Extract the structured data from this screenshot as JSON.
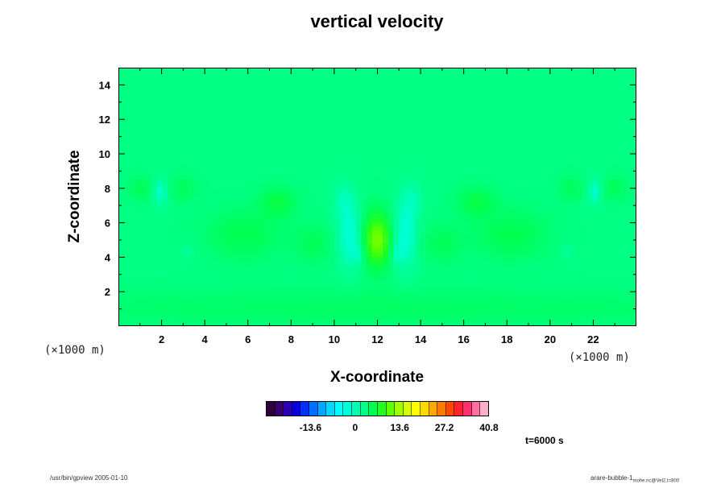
{
  "chart_data": {
    "type": "heatmap",
    "title": "vertical velocity",
    "xlabel": "X-coordinate",
    "ylabel": "Z-coordinate",
    "x_unit": "(×1000 m)",
    "y_unit": "(×1000 m)",
    "xlim": [
      0,
      24
    ],
    "ylim": [
      0,
      15
    ],
    "x_ticks": [
      2,
      4,
      6,
      8,
      10,
      12,
      14,
      16,
      18,
      20,
      22
    ],
    "y_ticks": [
      2,
      4,
      6,
      8,
      10,
      12,
      14
    ],
    "background_value": 3,
    "features": [
      {
        "x": 12.0,
        "z": 5.0,
        "sx": 0.45,
        "sz": 1.1,
        "value": 9
      },
      {
        "x": 10.7,
        "z": 5.3,
        "sx": 0.35,
        "sz": 1.3,
        "value": -6
      },
      {
        "x": 13.3,
        "z": 5.3,
        "sx": 0.35,
        "sz": 1.3,
        "value": -6
      },
      {
        "x": 10.4,
        "z": 7.3,
        "sx": 0.3,
        "sz": 0.7,
        "value": -3
      },
      {
        "x": 13.6,
        "z": 7.3,
        "sx": 0.3,
        "sz": 0.7,
        "value": -3
      },
      {
        "x": 11.1,
        "z": 4.2,
        "sx": 0.2,
        "sz": 0.4,
        "value": -3
      },
      {
        "x": 12.9,
        "z": 4.2,
        "sx": 0.2,
        "sz": 0.4,
        "value": -3
      },
      {
        "x": 1.9,
        "z": 7.8,
        "sx": 0.2,
        "sz": 0.5,
        "value": -5
      },
      {
        "x": 22.1,
        "z": 7.8,
        "sx": 0.2,
        "sz": 0.5,
        "value": -5
      },
      {
        "x": 7.4,
        "z": 7.2,
        "sx": 0.6,
        "sz": 0.6,
        "value": 3
      },
      {
        "x": 16.6,
        "z": 7.2,
        "sx": 0.6,
        "sz": 0.6,
        "value": 3
      },
      {
        "x": 5.8,
        "z": 5.3,
        "sx": 1.2,
        "sz": 1.0,
        "value": 2.5
      },
      {
        "x": 18.2,
        "z": 5.3,
        "sx": 1.2,
        "sz": 1.0,
        "value": 2.5
      },
      {
        "x": 9.0,
        "z": 4.8,
        "sx": 0.6,
        "sz": 0.8,
        "value": 2
      },
      {
        "x": 15.0,
        "z": 4.8,
        "sx": 0.6,
        "sz": 0.8,
        "value": 2
      },
      {
        "x": 3.2,
        "z": 4.3,
        "sx": 0.15,
        "sz": 0.25,
        "value": -2
      },
      {
        "x": 20.8,
        "z": 4.3,
        "sx": 0.15,
        "sz": 0.25,
        "value": -2
      },
      {
        "x": 1.0,
        "z": 8.0,
        "sx": 0.4,
        "sz": 0.5,
        "value": 2
      },
      {
        "x": 23.0,
        "z": 8.0,
        "sx": 0.4,
        "sz": 0.5,
        "value": 2
      },
      {
        "x": 3.0,
        "z": 8.0,
        "sx": 0.4,
        "sz": 0.5,
        "value": 2
      },
      {
        "x": 21.0,
        "z": 8.0,
        "sx": 0.4,
        "sz": 0.5,
        "value": 2
      },
      {
        "x": 12.0,
        "z": 1.0,
        "sx": 12.0,
        "sz": 0.8,
        "value": 1.5
      }
    ],
    "colorbar": {
      "min": -27.2,
      "max": 40.8,
      "labels": [
        "-13.6",
        "0",
        "13.6",
        "27.2",
        "40.8"
      ],
      "label_values": [
        -13.6,
        0,
        13.6,
        27.2,
        40.8
      ],
      "colors": [
        "#30003a",
        "#3a0070",
        "#2a00b0",
        "#0000e0",
        "#0030ff",
        "#0070ff",
        "#00a8ff",
        "#00d8ff",
        "#00ffff",
        "#00ffd8",
        "#00ffb0",
        "#00ff88",
        "#00ff50",
        "#20ff20",
        "#60ff00",
        "#a0ff00",
        "#d8ff00",
        "#ffff00",
        "#ffd800",
        "#ffa800",
        "#ff7800",
        "#ff4800",
        "#ff2030",
        "#ff3070",
        "#ff70a0",
        "#ffb0c8"
      ]
    }
  },
  "annotations": {
    "time": "t=6000 s",
    "footer_left": "/usr/bin/gpview 2005-01-10",
    "footer_right_main": "arare-bubble-1",
    "footer_right_sub": "mohe.nc@Vel2,t=800"
  }
}
